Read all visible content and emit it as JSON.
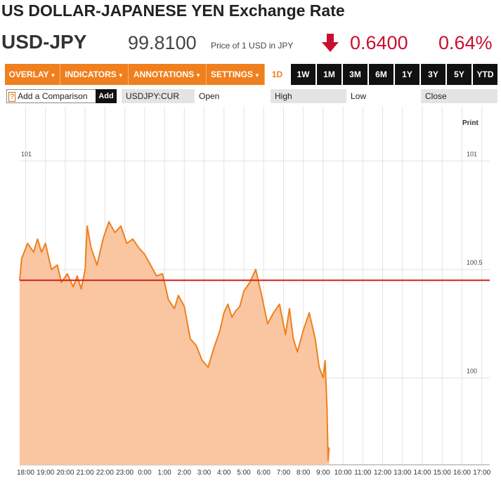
{
  "header": {
    "title": "US DOLLAR-JAPANESE YEN Exchange Rate",
    "symbol": "USD-JPY",
    "price": "99.8100",
    "price_caption": "Price of 1 USD in JPY",
    "change": "0.6400",
    "change_pct": "0.64%",
    "change_direction_icon": "down-arrow-icon",
    "change_color": "#c8102e"
  },
  "toolbar": {
    "menus": [
      "OVERLAY",
      "INDICATORS",
      "ANNOTATIONS",
      "SETTINGS"
    ],
    "ranges": [
      "1D",
      "1W",
      "1M",
      "3M",
      "6M",
      "1Y",
      "3Y",
      "5Y",
      "YTD"
    ],
    "active_range": "1D",
    "accent_color": "#f07f1d"
  },
  "subbar": {
    "help_icon": "?",
    "compare_placeholder": "Add a Comparison",
    "add_label": "Add",
    "ticker": "USDJPY:CUR",
    "open_label": "Open",
    "high_label": "High",
    "low_label": "Low",
    "close_label": "Close"
  },
  "chart_data": {
    "type": "area",
    "print_label": "Print",
    "x_ticks": [
      "18:00",
      "19:00",
      "20:00",
      "21:00",
      "22:00",
      "23:00",
      "0:00",
      "1:00",
      "2:00",
      "3:00",
      "4:00",
      "5:00",
      "6:00",
      "7:00",
      "8:00",
      "9:00",
      "10:00",
      "11:00",
      "12:00",
      "13:00",
      "14:00",
      "15:00",
      "16:00",
      "17:00"
    ],
    "y_ticks": [
      100,
      100.5,
      101
    ],
    "y_tick_labels": [
      "100",
      "100.5",
      "101"
    ],
    "ylim": [
      99.6,
      101.25
    ],
    "xlim": [
      -0.3,
      23.4
    ],
    "grid": true,
    "reference_line": {
      "value": 100.45,
      "color": "#d21f1f"
    },
    "series": [
      {
        "x": [
          -0.3,
          -0.2,
          0.1,
          0.4,
          0.6,
          0.8,
          1.0,
          1.3,
          1.6,
          1.8,
          2.1,
          2.4,
          2.6,
          2.8,
          3.0,
          3.1,
          3.3,
          3.6,
          3.9,
          4.2,
          4.5,
          4.8,
          5.1,
          5.4,
          5.7,
          6.0,
          6.3,
          6.6,
          6.9,
          7.2,
          7.5,
          7.7,
          8.0,
          8.3,
          8.6,
          8.9,
          9.2,
          9.5,
          9.8,
          10.0,
          10.2,
          10.4,
          10.6,
          10.8,
          11.0,
          11.3,
          11.6,
          11.9,
          12.2,
          12.5,
          12.8,
          13.1,
          13.3,
          13.5,
          13.7,
          14.0,
          14.3,
          14.6,
          14.8,
          15.0,
          15.1,
          15.2,
          15.25,
          15.3
        ],
        "y": [
          100.45,
          100.55,
          100.62,
          100.58,
          100.64,
          100.58,
          100.62,
          100.5,
          100.52,
          100.44,
          100.48,
          100.42,
          100.47,
          100.41,
          100.5,
          100.7,
          100.6,
          100.52,
          100.64,
          100.72,
          100.67,
          100.7,
          100.62,
          100.64,
          100.6,
          100.57,
          100.52,
          100.47,
          100.48,
          100.36,
          100.32,
          100.38,
          100.33,
          100.18,
          100.15,
          100.08,
          100.05,
          100.14,
          100.22,
          100.3,
          100.34,
          100.28,
          100.31,
          100.33,
          100.4,
          100.44,
          100.5,
          100.38,
          100.25,
          100.3,
          100.34,
          100.2,
          100.32,
          100.18,
          100.12,
          100.22,
          100.3,
          100.18,
          100.05,
          100.0,
          100.08,
          99.85,
          99.62,
          99.68
        ],
        "color": "#f07f1d",
        "fill": "#f9c6a1"
      }
    ]
  }
}
